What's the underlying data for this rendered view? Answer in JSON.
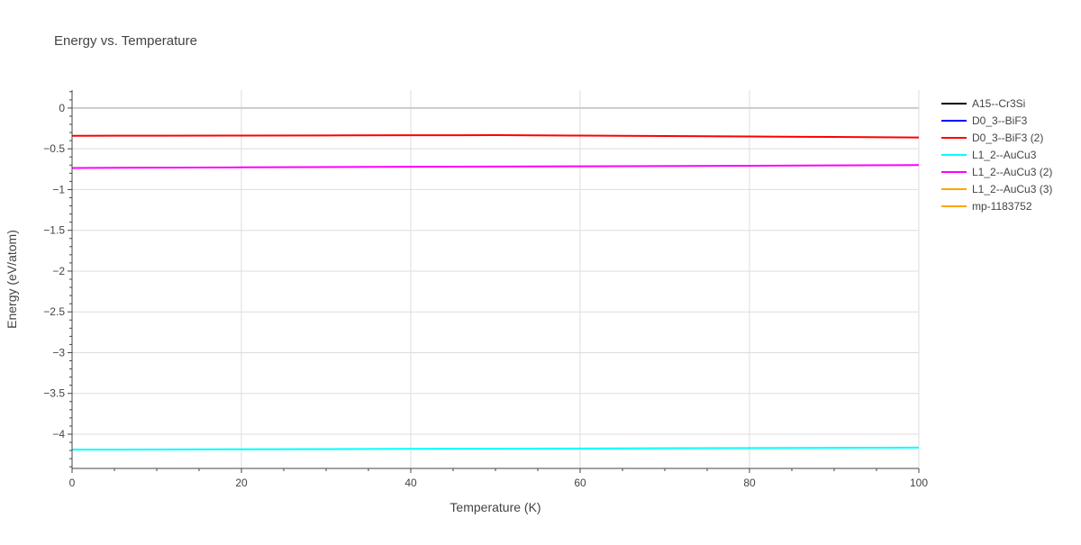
{
  "chart_data": {
    "type": "line",
    "title": "Energy vs. Temperature",
    "xlabel": "Temperature (K)",
    "ylabel": "Energy (eV/atom)",
    "xlim": [
      0,
      100
    ],
    "ylim": [
      -4.42,
      0.22
    ],
    "x_ticks": [
      0,
      20,
      40,
      60,
      80,
      100
    ],
    "x_tick_labels": [
      "0",
      "20",
      "40",
      "60",
      "80",
      "100"
    ],
    "y_ticks": [
      0,
      -0.5,
      -1,
      -1.5,
      -2,
      -2.5,
      -3,
      -3.5,
      -4
    ],
    "y_tick_labels": [
      "0",
      "−0.5",
      "−1",
      "−1.5",
      "−2",
      "−2.5",
      "−3",
      "−3.5",
      "−4"
    ],
    "grid": true,
    "legend_position": "right",
    "series": [
      {
        "name": "A15--Cr3Si",
        "color": "#000000",
        "x": [],
        "y": []
      },
      {
        "name": "D0_3--BiF3",
        "color": "#0000ff",
        "x": [],
        "y": []
      },
      {
        "name": "D0_3--BiF3 (2)",
        "color": "#ff0000",
        "x": [
          0,
          10,
          20,
          30,
          40,
          50,
          60,
          70,
          80,
          90,
          100
        ],
        "y": [
          -0.34,
          -0.339,
          -0.338,
          -0.336,
          -0.334,
          -0.333,
          -0.338,
          -0.343,
          -0.349,
          -0.355,
          -0.362
        ]
      },
      {
        "name": "L1_2--AuCu3",
        "color": "#00ffff",
        "x": [
          0,
          20,
          40,
          60,
          80,
          100
        ],
        "y": [
          -4.19,
          -4.185,
          -4.18,
          -4.175,
          -4.17,
          -4.165
        ]
      },
      {
        "name": "L1_2--AuCu3 (2)",
        "color": "#ff00ff",
        "x": [
          0,
          20,
          40,
          60,
          80,
          100
        ],
        "y": [
          -0.735,
          -0.728,
          -0.721,
          -0.715,
          -0.708,
          -0.7
        ]
      },
      {
        "name": "L1_2--AuCu3 (3)",
        "color": "#ffa500",
        "x": [],
        "y": []
      },
      {
        "name": "mp-1183752",
        "color": "#ffa500",
        "x": [],
        "y": []
      }
    ]
  }
}
